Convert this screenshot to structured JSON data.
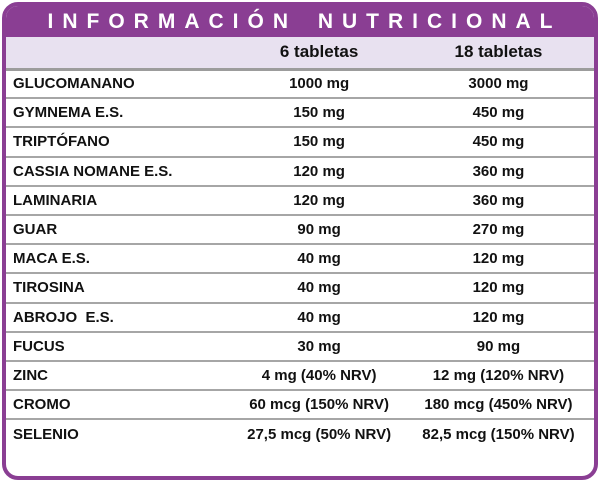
{
  "title": "INFORMACIÓN NUTRICIONAL",
  "table": {
    "columns": [
      "6 tabletas",
      "18 tabletas"
    ],
    "rows": [
      {
        "name": "GLUCOMANANO",
        "v6": "1000 mg",
        "v18": "3000 mg"
      },
      {
        "name": "GYMNEMA E.S.",
        "v6": "150 mg",
        "v18": "450 mg"
      },
      {
        "name": "TRIPTÓFANO",
        "v6": "150 mg",
        "v18": "450 mg"
      },
      {
        "name": "CASSIA NOMANE E.S.",
        "v6": "120 mg",
        "v18": "360 mg"
      },
      {
        "name": "LAMINARIA",
        "v6": "120 mg",
        "v18": "360 mg"
      },
      {
        "name": "GUAR",
        "v6": "90 mg",
        "v18": "270 mg"
      },
      {
        "name": "MACA E.S.",
        "v6": "40 mg",
        "v18": "120 mg"
      },
      {
        "name": "TIROSINA",
        "v6": "40 mg",
        "v18": "120 mg"
      },
      {
        "name": "ABROJO  E.S.",
        "v6": "40 mg",
        "v18": "120 mg"
      },
      {
        "name": "FUCUS",
        "v6": "30 mg",
        "v18": "90 mg"
      },
      {
        "name": "ZINC",
        "v6": "4 mg (40% NRV)",
        "v18": "12 mg (120% NRV)"
      },
      {
        "name": "CROMO",
        "v6": "60 mcg (150% NRV)",
        "v18": "180 mcg (450% NRV)"
      },
      {
        "name": "SELENIO",
        "v6": "27,5 mcg (50% NRV)",
        "v18": "82,5 mcg (150% NRV)"
      }
    ]
  },
  "colors": {
    "accent_purple": "#8a3e93",
    "subheader_lavender": "#e8e1f0",
    "separator_gray": "#a6a6a6",
    "text": "#111111",
    "background": "#ffffff"
  }
}
